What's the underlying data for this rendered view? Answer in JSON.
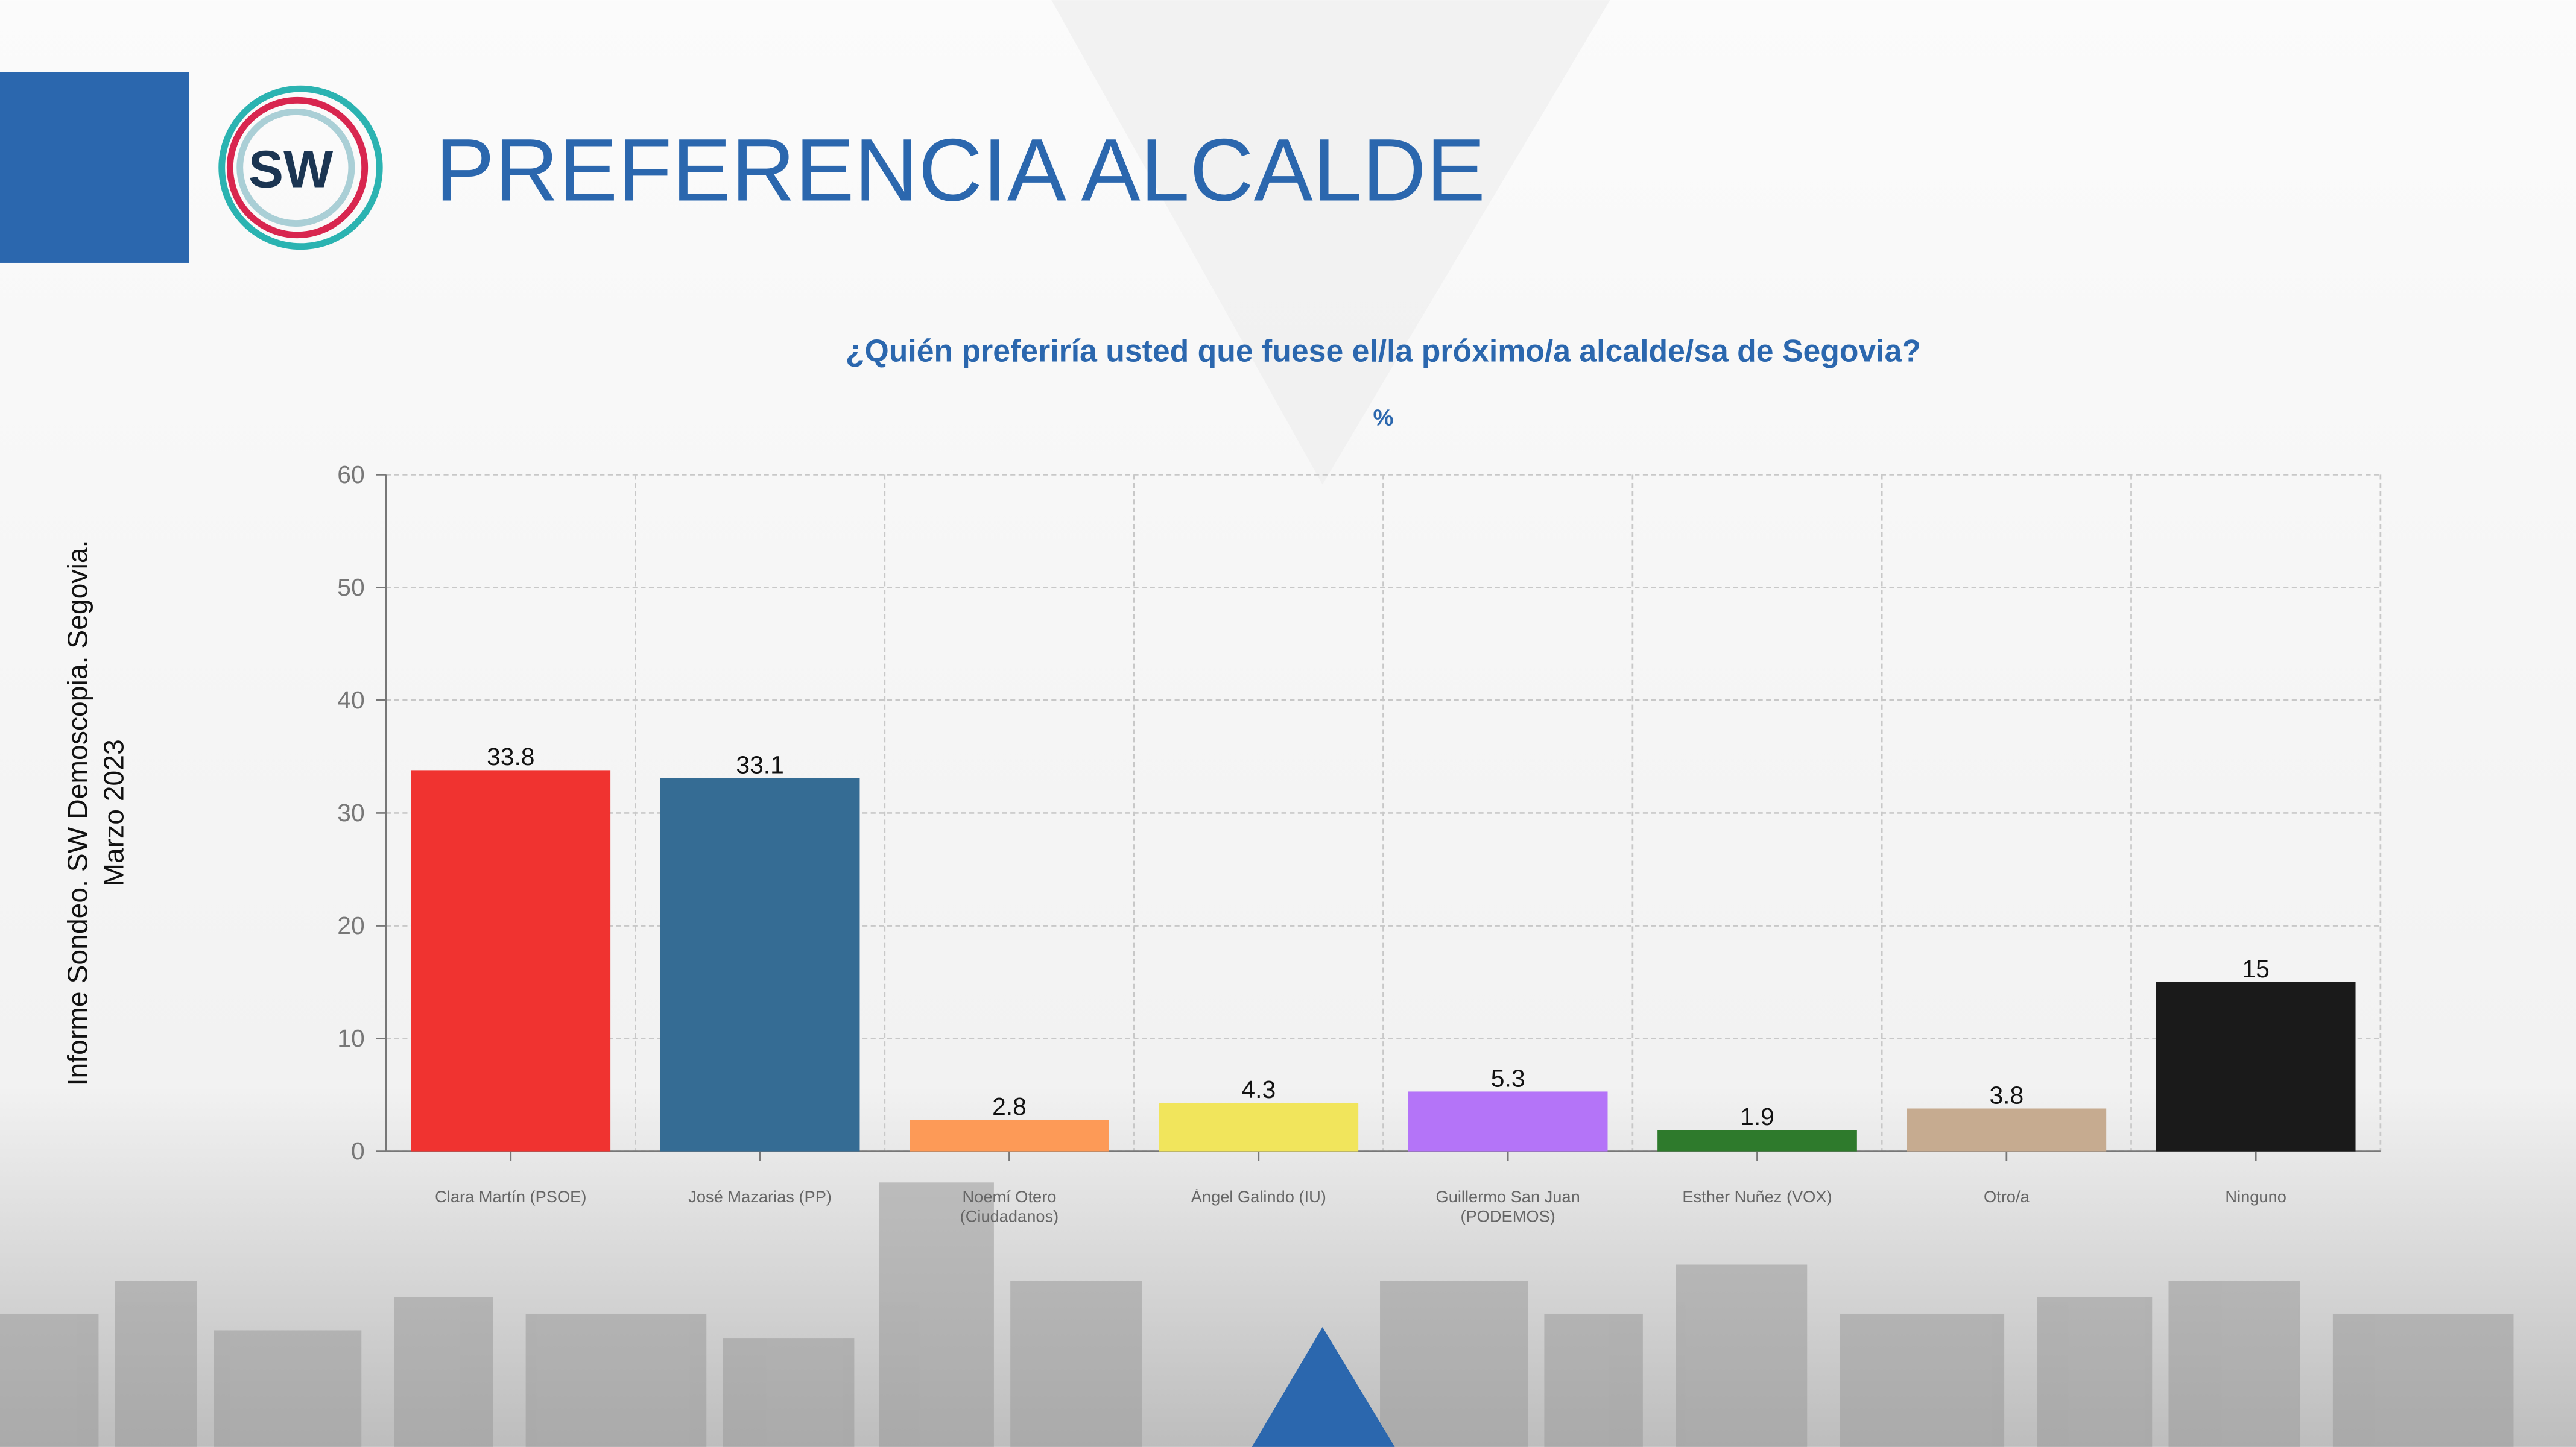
{
  "header": {
    "logo": "SW",
    "title": "PREFERENCIA ALCALDE"
  },
  "side_note": [
    "Informe Sondeo. SW Demoscopia. Segovia.",
    "Marzo 2023"
  ],
  "chart_data": {
    "type": "bar",
    "title": "¿Quién preferiría usted que fuese el/la próximo/a alcalde/sa de Segovia?",
    "subtitle": "%",
    "categories": [
      "Clara Martín (PSOE)",
      "José Mazarias (PP)",
      "Noemí Otero (Ciudadanos)",
      "Ángel Galindo (IU)",
      "Guillermo San Juan (PODEMOS)",
      "Esther Nuñez (VOX)",
      "Otro/a",
      "Ninguno"
    ],
    "values": [
      33.8,
      33.1,
      2.8,
      4.3,
      5.3,
      1.9,
      3.8,
      15
    ],
    "colors": [
      "#f03330",
      "#356c94",
      "#fd9a57",
      "#f1e55c",
      "#b474f8",
      "#2e7a2c",
      "#c6ab90",
      "#1a1a1a"
    ],
    "ylim": [
      0,
      60
    ],
    "yticks": [
      0,
      10,
      20,
      30,
      40,
      50,
      60
    ],
    "grid": true
  }
}
